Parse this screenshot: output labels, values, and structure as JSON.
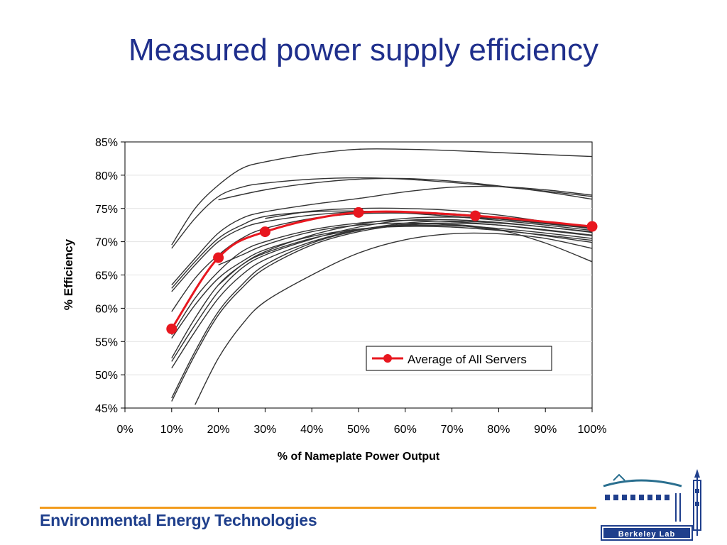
{
  "slide": {
    "title": "Measured power supply efficiency",
    "footer": "Environmental Energy Technologies",
    "logo_text": "Berkeley Lab"
  },
  "colors": {
    "title": "#1f2f8c",
    "average_series": "#e8171f",
    "server_series": "#333333",
    "footer_rule": "#f29c1e",
    "footer_text": "#1f3f8c"
  },
  "chart_data": {
    "type": "line",
    "xlabel": "% of Nameplate Power Output",
    "ylabel": "% Efficiency",
    "xlim": [
      0,
      100
    ],
    "ylim": [
      45,
      85
    ],
    "x_ticks": [
      0,
      10,
      20,
      30,
      40,
      50,
      60,
      70,
      80,
      90,
      100
    ],
    "x_tick_labels": [
      "0%",
      "10%",
      "20%",
      "30%",
      "40%",
      "50%",
      "60%",
      "70%",
      "80%",
      "90%",
      "100%"
    ],
    "y_ticks": [
      45,
      50,
      55,
      60,
      65,
      70,
      75,
      80,
      85
    ],
    "y_tick_labels": [
      "45%",
      "50%",
      "55%",
      "60%",
      "65%",
      "70%",
      "75%",
      "80%",
      "85%"
    ],
    "grid": "horizontal",
    "legend": {
      "placement": "bottom-right",
      "entries": [
        "Average of All Servers"
      ]
    },
    "series": [
      {
        "name": "Average of All Servers",
        "highlight": true,
        "x": [
          10,
          20,
          30,
          50,
          75,
          100
        ],
        "y": [
          56.9,
          67.6,
          71.5,
          74.4,
          73.9,
          72.3
        ]
      },
      {
        "x": [
          10,
          15,
          20,
          25,
          30,
          40,
          50,
          60,
          70,
          80,
          90,
          100
        ],
        "y": [
          69.5,
          75.0,
          78.5,
          81.0,
          82.0,
          83.2,
          83.9,
          83.9,
          83.7,
          83.4,
          83.1,
          82.8
        ]
      },
      {
        "x": [
          10,
          15,
          20,
          25,
          30,
          40,
          50,
          60,
          70,
          80,
          90,
          100
        ],
        "y": [
          69.0,
          73.5,
          76.8,
          78.2,
          78.8,
          79.4,
          79.6,
          79.4,
          78.9,
          78.3,
          77.6,
          76.8
        ]
      },
      {
        "x": [
          20,
          30,
          40,
          50,
          60,
          70,
          80,
          90,
          100
        ],
        "y": [
          76.3,
          77.8,
          78.8,
          79.4,
          79.5,
          79.1,
          78.4,
          77.5,
          76.4
        ]
      },
      {
        "x": [
          10,
          15,
          20,
          25,
          30,
          40,
          50,
          60,
          70,
          80,
          90,
          100
        ],
        "y": [
          63.5,
          67.5,
          71.3,
          73.5,
          74.5,
          75.6,
          76.5,
          77.5,
          78.2,
          78.3,
          77.8,
          77.0
        ]
      },
      {
        "x": [
          10,
          15,
          20,
          25,
          30,
          40,
          50,
          60,
          70,
          80,
          90,
          100
        ],
        "y": [
          63.0,
          67.0,
          70.5,
          72.5,
          73.8,
          74.5,
          74.6,
          74.3,
          73.8,
          73.2,
          72.5,
          71.7
        ]
      },
      {
        "x": [
          10,
          15,
          20,
          25,
          30,
          40,
          50,
          60,
          70,
          80,
          90,
          100
        ],
        "y": [
          62.5,
          66.5,
          70.0,
          72.0,
          73.0,
          74.0,
          74.5,
          74.5,
          74.2,
          73.6,
          72.9,
          72.1
        ]
      },
      {
        "x": [
          10,
          15,
          20,
          25,
          30,
          40,
          50,
          60,
          70,
          80,
          90,
          100
        ],
        "y": [
          59.5,
          64.5,
          68.0,
          70.5,
          72.0,
          73.5,
          74.2,
          74.3,
          74.0,
          73.4,
          72.7,
          72.0
        ]
      },
      {
        "x": [
          10,
          15,
          20,
          25,
          30,
          40,
          50,
          60,
          70,
          80,
          90,
          100
        ],
        "y": [
          56.0,
          61.5,
          65.5,
          68.5,
          70.0,
          71.8,
          72.8,
          73.2,
          73.0,
          72.5,
          71.7,
          70.9
        ]
      },
      {
        "x": [
          10,
          15,
          20,
          25,
          30,
          40,
          50,
          60,
          70,
          80,
          90,
          100
        ],
        "y": [
          55.5,
          60.5,
          64.5,
          67.0,
          68.8,
          70.8,
          71.9,
          72.3,
          72.2,
          71.7,
          71.0,
          70.2
        ]
      },
      {
        "x": [
          10,
          15,
          20,
          25,
          30,
          40,
          50,
          60,
          70,
          80,
          90,
          100
        ],
        "y": [
          52.5,
          58.5,
          63.5,
          66.5,
          68.3,
          70.5,
          71.8,
          72.4,
          72.4,
          72.0,
          71.3,
          70.5
        ]
      },
      {
        "x": [
          10,
          15,
          20,
          25,
          30,
          40,
          50,
          60,
          70,
          80,
          90,
          100
        ],
        "y": [
          52.0,
          57.5,
          62.5,
          66.0,
          68.0,
          70.4,
          72.2,
          73.2,
          73.3,
          72.9,
          72.2,
          71.5
        ]
      },
      {
        "x": [
          10,
          15,
          20,
          25,
          30,
          40,
          50,
          60,
          70,
          80,
          90,
          100
        ],
        "y": [
          51.0,
          56.5,
          61.5,
          65.0,
          67.3,
          70.0,
          71.8,
          72.6,
          72.8,
          72.5,
          71.8,
          71.0
        ]
      },
      {
        "x": [
          10,
          15,
          20,
          25,
          30,
          40,
          50,
          60,
          70,
          80,
          90,
          100
        ],
        "y": [
          46.5,
          53.5,
          59.5,
          63.5,
          66.5,
          69.8,
          71.7,
          72.8,
          73.1,
          72.8,
          72.2,
          71.4
        ]
      },
      {
        "x": [
          10,
          15,
          20,
          25,
          30,
          40,
          50,
          60,
          70,
          80,
          90,
          100
        ],
        "y": [
          46.0,
          53.0,
          59.0,
          63.0,
          66.0,
          69.5,
          71.5,
          72.5,
          72.6,
          71.8,
          69.8,
          67.0
        ]
      },
      {
        "x": [
          15,
          20,
          25,
          30,
          40,
          50,
          60,
          70,
          80,
          90,
          100
        ],
        "y": [
          45.5,
          52.5,
          57.5,
          61.0,
          65.0,
          68.3,
          70.3,
          71.2,
          71.2,
          70.5,
          69.0
        ]
      },
      {
        "x": [
          20,
          25,
          30,
          40,
          50,
          60,
          70,
          80,
          90,
          100
        ],
        "y": [
          66.5,
          68.0,
          69.5,
          71.5,
          72.5,
          72.8,
          72.5,
          71.8,
          70.9,
          69.9
        ]
      },
      {
        "x": [
          30,
          40,
          50,
          60,
          70,
          80,
          90,
          100
        ],
        "y": [
          73.5,
          74.6,
          75.0,
          75.0,
          74.7,
          74.0,
          73.0,
          71.9
        ]
      },
      {
        "x": [
          20,
          25,
          30,
          40,
          50,
          60,
          70,
          80,
          90,
          100
        ],
        "y": [
          63.5,
          66.5,
          68.5,
          71.0,
          72.6,
          73.5,
          73.7,
          73.4,
          72.8,
          72.1
        ]
      }
    ]
  }
}
